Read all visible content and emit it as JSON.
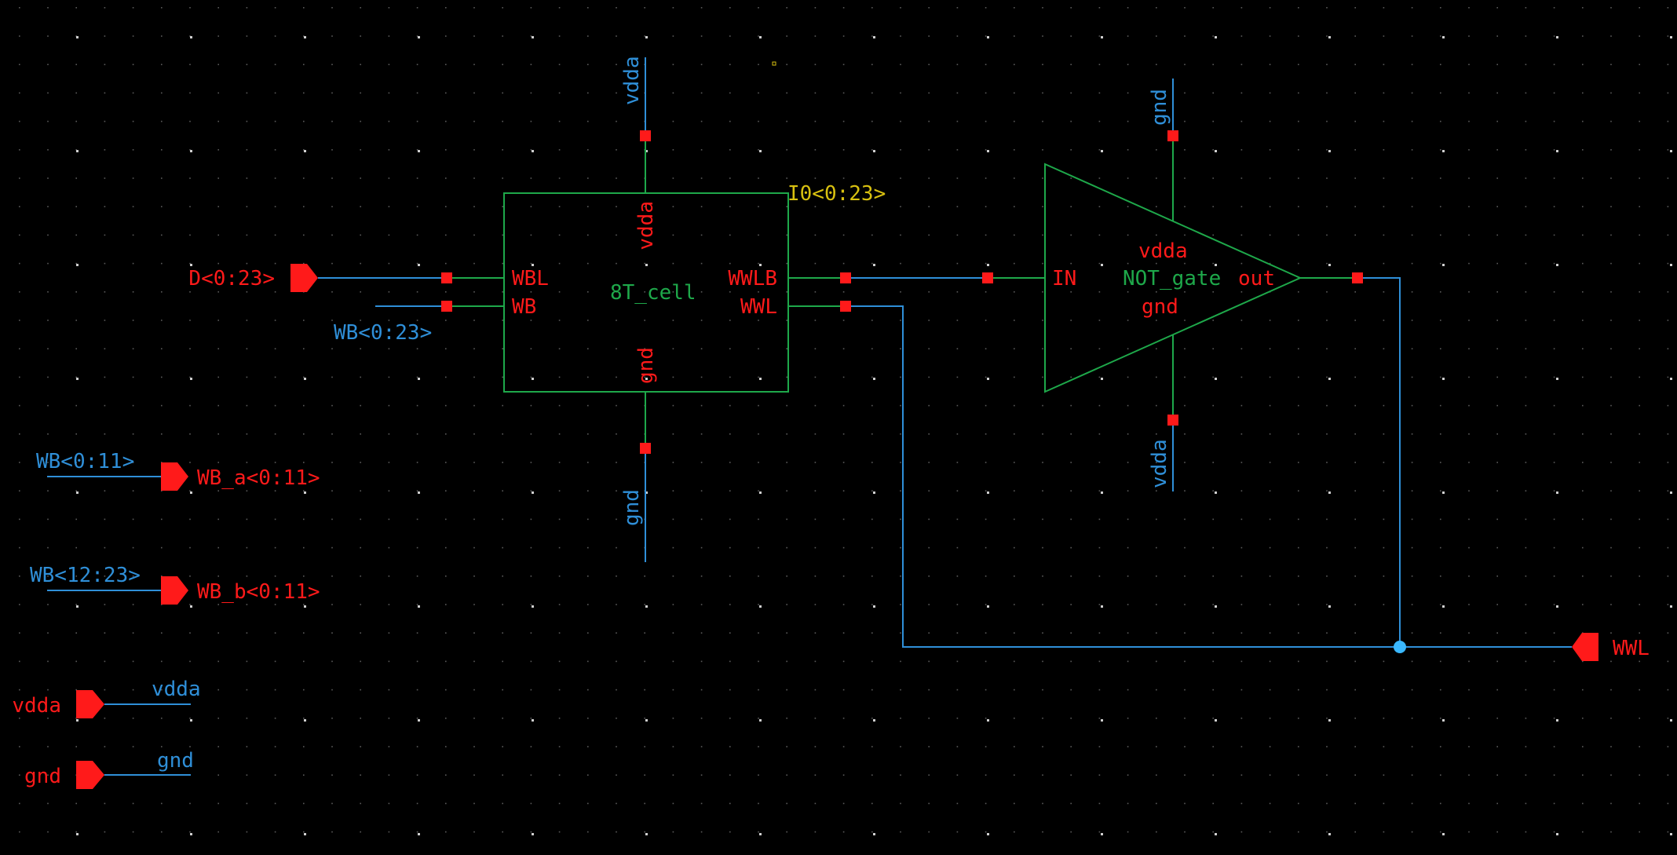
{
  "colors": {
    "background": "#000000",
    "wire": "#2f8fd8",
    "instance": "#1ea84a",
    "pin": "#ff1a1a",
    "instance_name": "#d8c010",
    "junction": "#3ab8ff",
    "grid": "#5a5a5a"
  },
  "cell": {
    "name": "8T_cell",
    "instance": "I0<0:23>",
    "pin_wbl": "WBL",
    "pin_wb": "WB",
    "pin_wwlb": "WWLB",
    "pin_wwl": "WWL",
    "pin_vdda": "vdda",
    "pin_gnd": "gnd"
  },
  "inverter": {
    "name": "NOT_gate",
    "pin_in": "IN",
    "pin_out": "out",
    "pin_vdda": "vdda",
    "pin_gnd": "gnd"
  },
  "pins": {
    "d": "D<0:23>",
    "wwl": "WWL",
    "wb_a": "WB_a<0:11>",
    "wb_b": "WB_b<0:11>",
    "vdda": "vdda",
    "gnd": "gnd"
  },
  "nets": {
    "wb_bus": "WB<0:23>",
    "wb_low": "WB<0:11>",
    "wb_high": "WB<12:23>",
    "cell_vdda": "vdda",
    "cell_gnd": "gnd",
    "inv_gnd": "gnd",
    "inv_vdda": "vdda",
    "vdda_label": "vdda",
    "gnd_label": "gnd"
  }
}
